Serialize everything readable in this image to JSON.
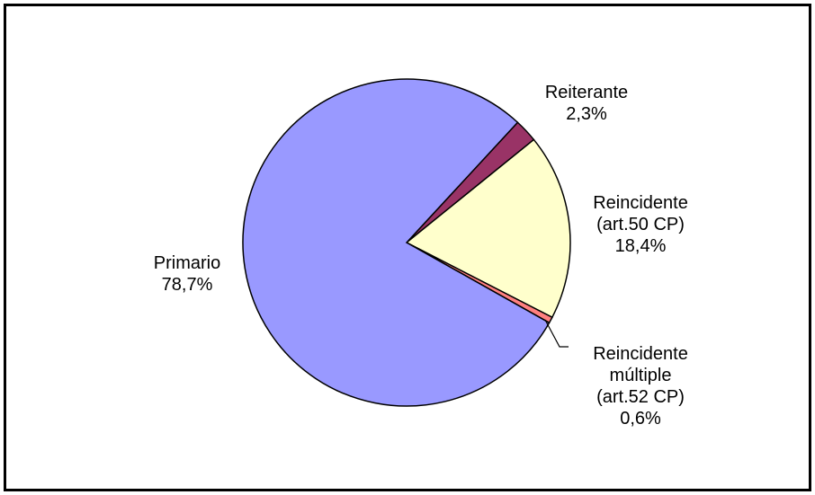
{
  "chart_data": {
    "type": "pie",
    "categories": [
      "Reiterante",
      "Reincidente (art.50 CP)",
      "Reincidente múltiple (art.52 CP)",
      "Primario"
    ],
    "values": [
      2.3,
      18.4,
      0.6,
      78.7
    ],
    "value_labels": [
      "2,3%",
      "18,4%",
      "0,6%",
      "78,7%"
    ],
    "colors": [
      "#993366",
      "#ffffcc",
      "#ff8080",
      "#9999ff"
    ]
  }
}
